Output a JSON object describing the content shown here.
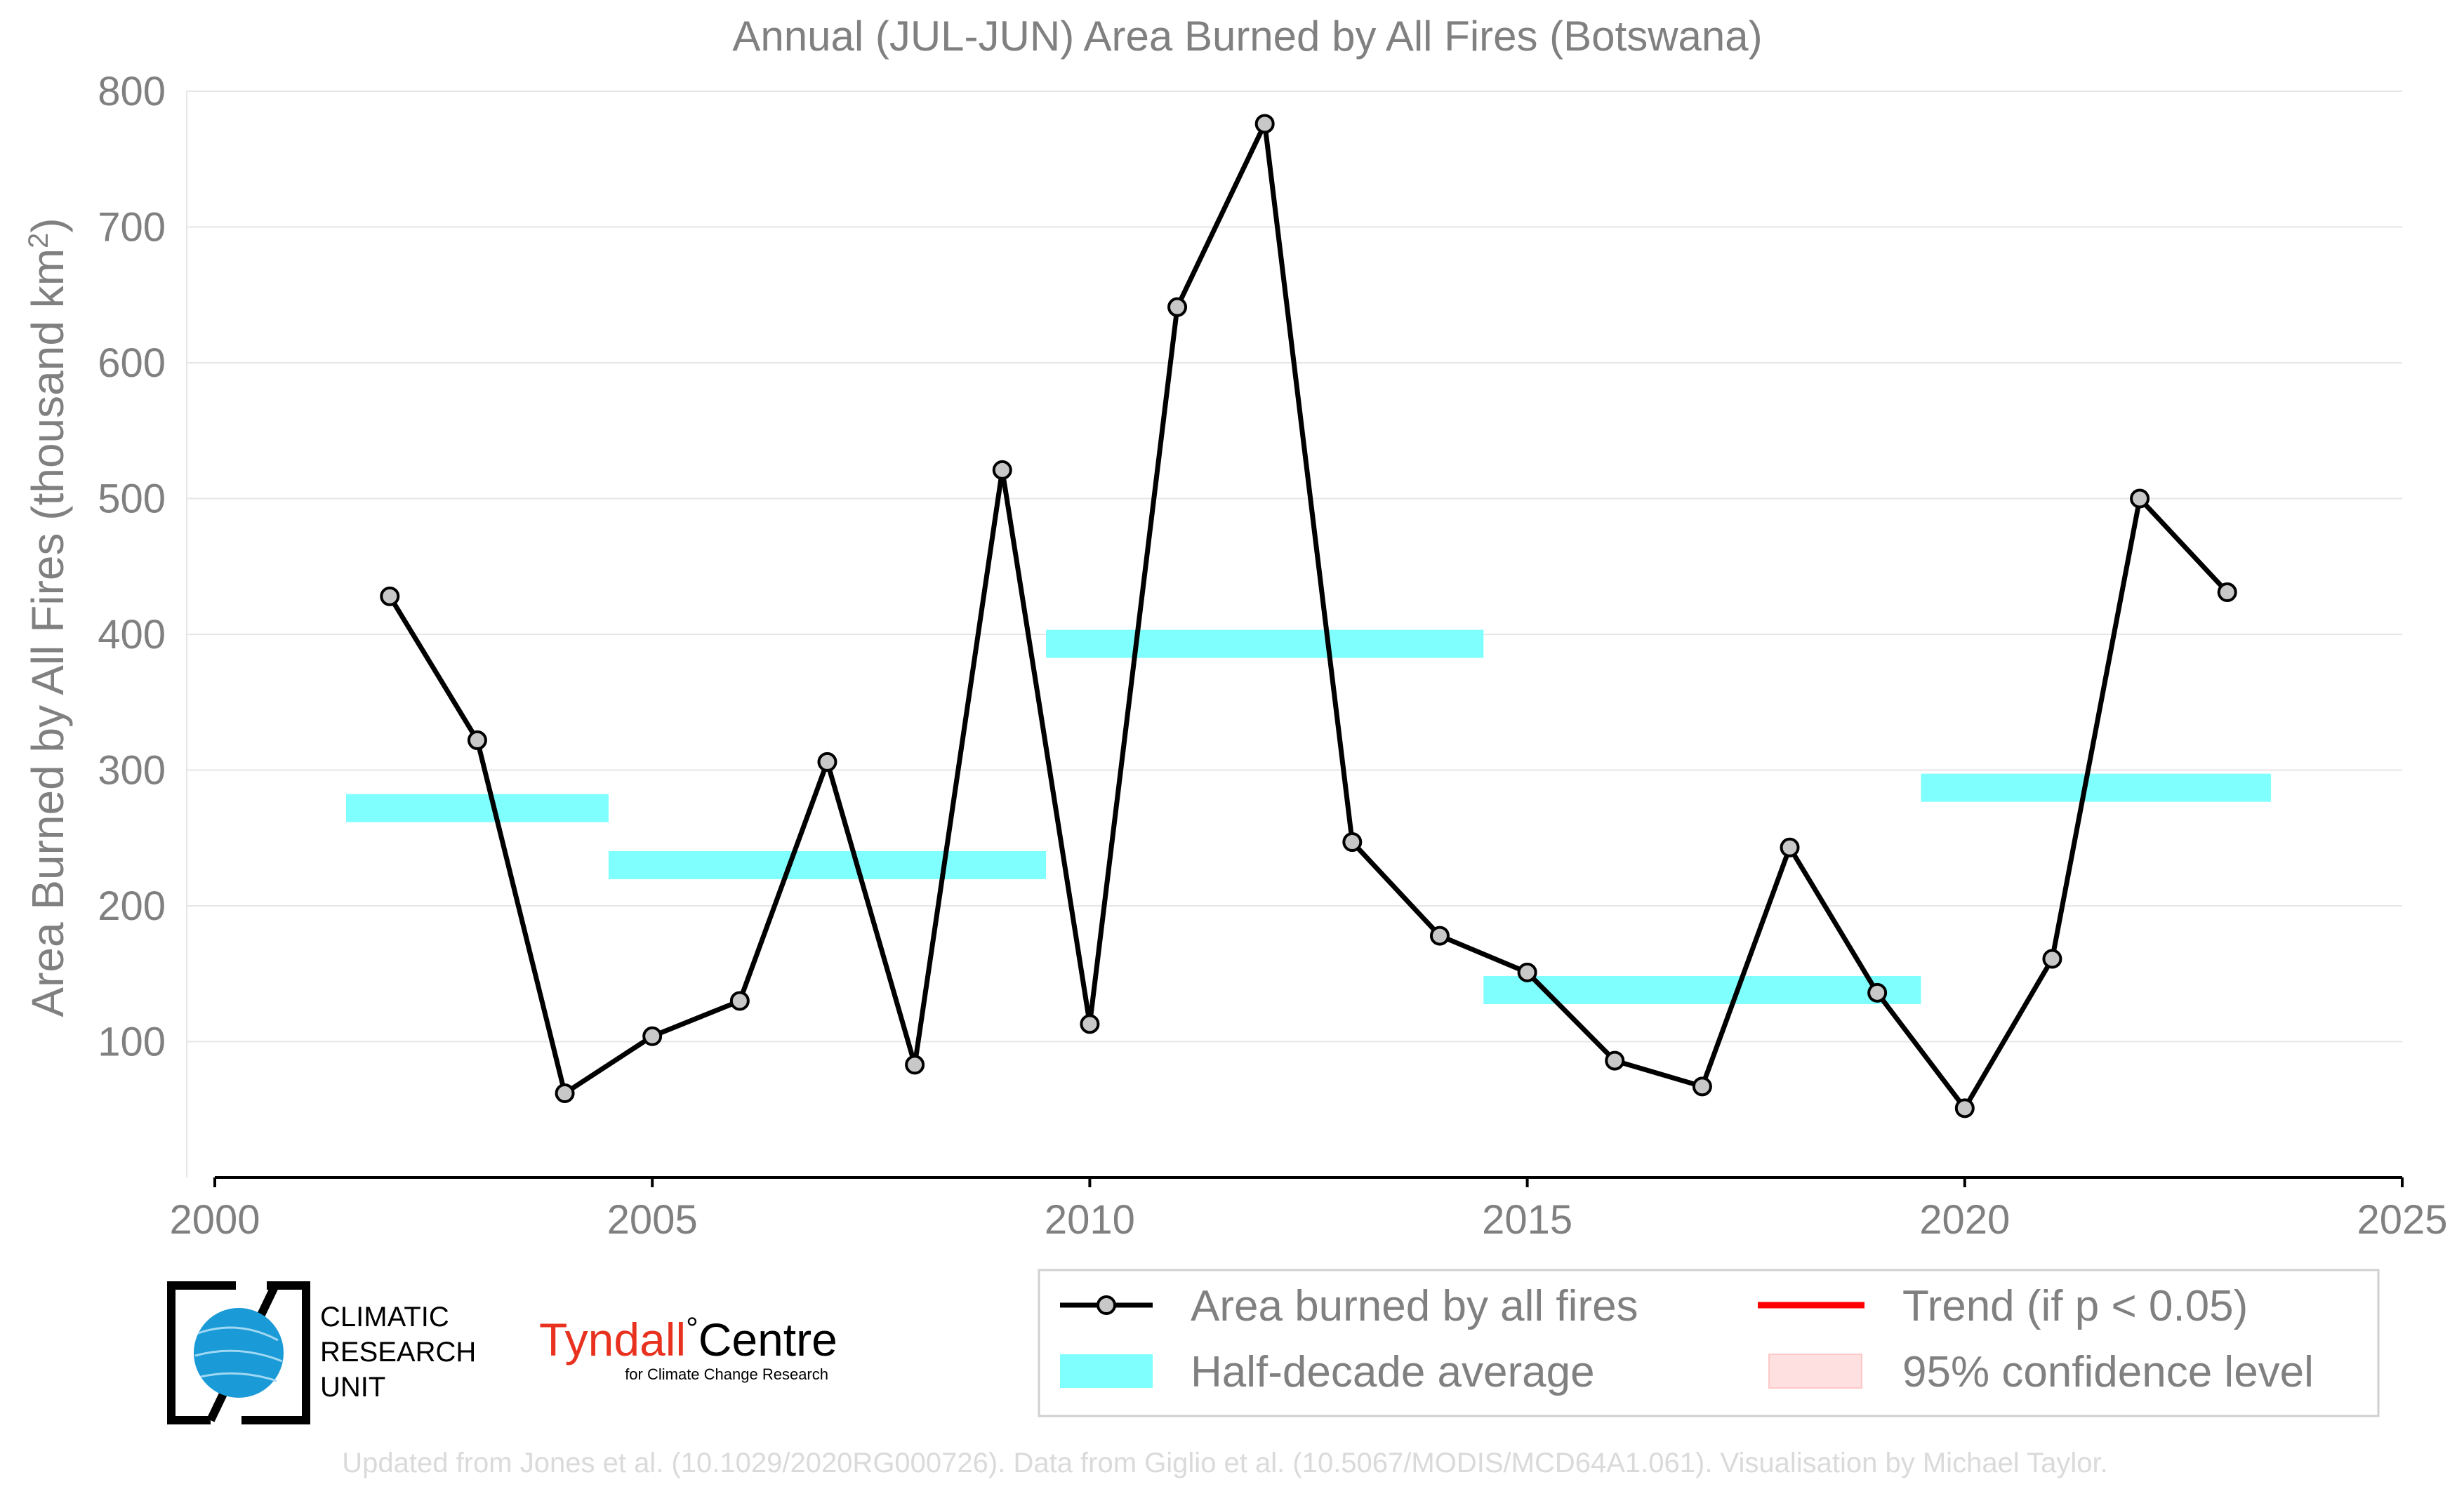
{
  "chart_data": {
    "type": "line",
    "title": "Annual (JUL-JUN) Area Burned by All Fires (Botswana)",
    "ylabel": "Area Burned by All Fires (thousand km",
    "ylabel_sup": "2",
    "ylabel_close": ")",
    "xlim": [
      2000,
      2025
    ],
    "ylim": [
      0,
      800
    ],
    "xticks": [
      2000,
      2005,
      2010,
      2015,
      2020,
      2025
    ],
    "yticks": [
      100,
      200,
      300,
      400,
      500,
      600,
      700,
      800
    ],
    "grid": true,
    "series": [
      {
        "name": "Area burned by all fires",
        "color": "#000000",
        "marker_fill": "#c8c8c8",
        "x": [
          2002,
          2003,
          2004,
          2005,
          2006,
          2007,
          2008,
          2009,
          2010,
          2011,
          2012,
          2013,
          2014,
          2015,
          2016,
          2017,
          2018,
          2019,
          2020,
          2021,
          2022,
          2023
        ],
        "y": [
          428,
          322,
          62,
          104,
          130,
          306,
          83,
          521,
          113,
          641,
          776,
          247,
          178,
          151,
          86,
          67,
          243,
          136,
          51,
          161,
          500,
          431
        ]
      },
      {
        "name": "Half-decade average",
        "color": "#80ffff",
        "bars": [
          {
            "x0": 2001.5,
            "x1": 2004.5,
            "y": 272
          },
          {
            "x0": 2004.5,
            "x1": 2009.5,
            "y": 230
          },
          {
            "x0": 2009.5,
            "x1": 2014.5,
            "y": 393
          },
          {
            "x0": 2014.5,
            "x1": 2019.5,
            "y": 138
          },
          {
            "x0": 2019.5,
            "x1": 2023.5,
            "y": 287
          }
        ]
      }
    ],
    "legend": {
      "placement": "bottom-right",
      "entries": [
        {
          "label": "Area burned by all fires",
          "type": "line-marker",
          "color": "#000000"
        },
        {
          "label": "Trend (if p < 0.05)",
          "type": "line",
          "color": "#ff0000"
        },
        {
          "label": "Half-decade average",
          "type": "patch",
          "color": "#80ffff"
        },
        {
          "label": "95% confidence level",
          "type": "patch",
          "color": "#ffe0e0"
        }
      ]
    }
  },
  "logos": {
    "cru_lines": [
      "CLIMATIC",
      "RESEARCH",
      "UNIT"
    ],
    "tyndall_name": "Tyndall",
    "tyndall_degree": "°",
    "tyndall_centre": "Centre",
    "tyndall_sub": "for Climate Change Research"
  },
  "footer": "Updated from Jones et al. (10.1029/2020RG000726). Data from Giglio et al. (10.5067/MODIS/MCD64A1.061). Visualisation by Michael Taylor.",
  "colors": {
    "axis_text": "#808080",
    "grid": "#e6e6e6",
    "line": "#000000",
    "marker_fill": "#c8c8c8",
    "half_decade": "#80ffff",
    "trend": "#ff0000",
    "confidence": "#ffe0e0",
    "tyndall_red": "#e8311e",
    "cru_blue": "#1a9ad6",
    "footer_text": "#dadada"
  }
}
